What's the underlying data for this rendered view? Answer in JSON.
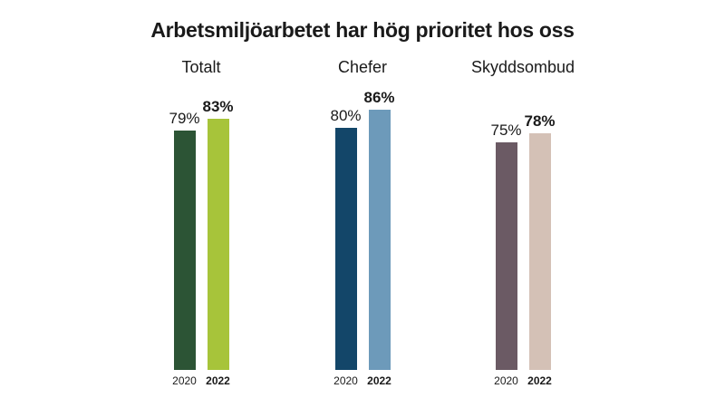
{
  "chart_data": {
    "type": "bar",
    "title": "Arbetsmiljöarbetet har hög prioritet hos oss",
    "categories": [
      "2020",
      "2022"
    ],
    "value_suffix": "%",
    "ylim": [
      0,
      100
    ],
    "grid": false,
    "legend_position": "under-bars",
    "text_color": "#1A1A1A",
    "background_color": "#FFFFFF",
    "groups": [
      {
        "label": "Totalt",
        "series": [
          {
            "name": "2020",
            "value": 79,
            "color": "#2C5435",
            "emphasis": false
          },
          {
            "name": "2022",
            "value": 83,
            "color": "#A7C43A",
            "emphasis": true
          }
        ]
      },
      {
        "label": "Chefer",
        "series": [
          {
            "name": "2020",
            "value": 80,
            "color": "#134669",
            "emphasis": false
          },
          {
            "name": "2022",
            "value": 86,
            "color": "#6D9ABA",
            "emphasis": true
          }
        ]
      },
      {
        "label": "Skyddsombud",
        "series": [
          {
            "name": "2020",
            "value": 75,
            "color": "#6B5A64",
            "emphasis": false
          },
          {
            "name": "2022",
            "value": 78,
            "color": "#D4C1B6",
            "emphasis": true
          }
        ]
      }
    ]
  }
}
